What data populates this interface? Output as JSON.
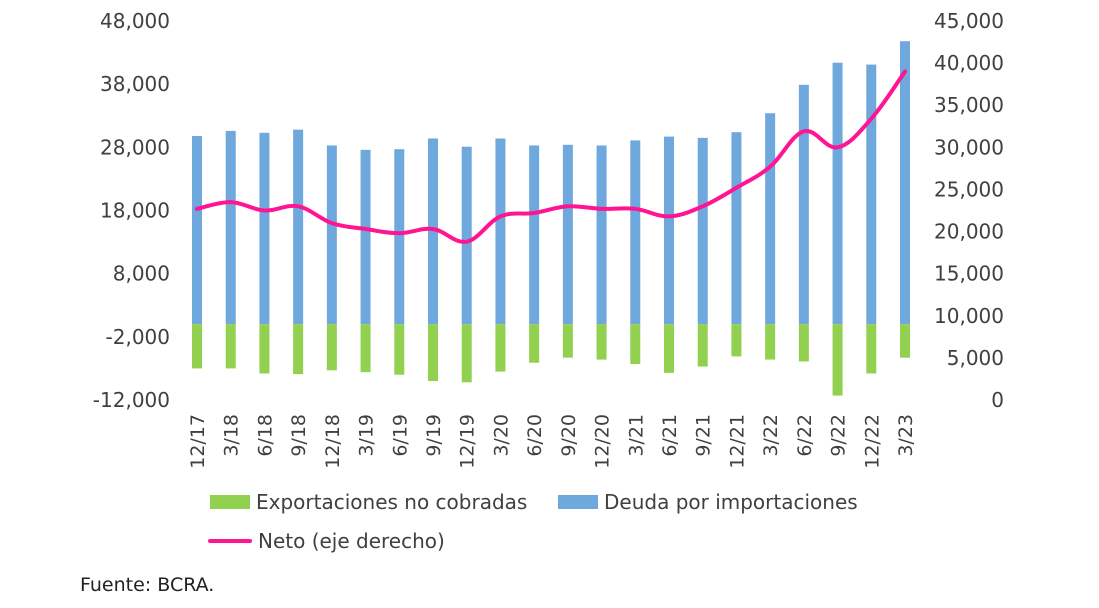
{
  "chart_data": {
    "type": "bar",
    "categories": [
      "12/17",
      "3/18",
      "6/18",
      "9/18",
      "12/18",
      "3/19",
      "6/19",
      "9/19",
      "12/19",
      "3/20",
      "6/20",
      "9/20",
      "12/20",
      "3/21",
      "6/21",
      "9/21",
      "12/21",
      "3/22",
      "6/22",
      "9/22",
      "12/22",
      "3/23"
    ],
    "left_axis": {
      "ticks": [
        "48,000",
        "38,000",
        "28,000",
        "18,000",
        "8,000",
        "-2,000",
        "-12,000"
      ],
      "ylim": [
        -12000,
        48000
      ]
    },
    "right_axis": {
      "ticks": [
        "45,000",
        "40,000",
        "35,000",
        "30,000",
        "25,000",
        "20,000",
        "15,000",
        "10,000",
        "5,000",
        "0"
      ],
      "ylim": [
        0,
        45000
      ]
    },
    "series": [
      {
        "name": "Exportaciones no cobradas",
        "axis": "left",
        "color": "#92d050",
        "values": [
          -7000,
          -7000,
          -7800,
          -7900,
          -7300,
          -7600,
          -8000,
          -9000,
          -9200,
          -7500,
          -6100,
          -5300,
          -5600,
          -6300,
          -7700,
          -6700,
          -5100,
          -5600,
          -5900,
          -11300,
          -7800,
          -5300
        ]
      },
      {
        "name": "Deuda por importaciones",
        "axis": "left",
        "color": "#6fa8dc",
        "values": [
          29800,
          30600,
          30300,
          30800,
          28300,
          27600,
          27700,
          29400,
          28100,
          29400,
          28300,
          28400,
          28300,
          29100,
          29700,
          29500,
          30400,
          33400,
          37900,
          41400,
          41100,
          44800
        ]
      },
      {
        "name": "Neto (eje derecho)",
        "axis": "right",
        "color": "#ff1493",
        "type": "line",
        "values": [
          22700,
          23500,
          22500,
          23000,
          21000,
          20300,
          19800,
          20300,
          18800,
          21800,
          22200,
          23000,
          22700,
          22700,
          21800,
          23000,
          25200,
          27700,
          31900,
          30000,
          33400,
          39000
        ]
      }
    ],
    "legend": "bottom"
  },
  "source": "Fuente: BCRA."
}
